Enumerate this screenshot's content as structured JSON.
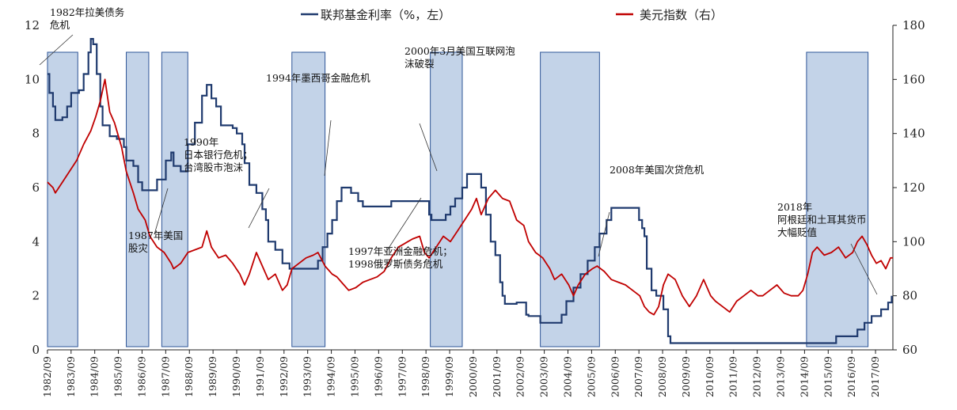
{
  "chart_data": {
    "type": "line",
    "title": "",
    "x_ticks": [
      "1982/09",
      "1983/09",
      "1984/09",
      "1985/09",
      "1986/09",
      "1987/09",
      "1988/09",
      "1989/09",
      "1990/09",
      "1991/09",
      "1992/09",
      "1993/09",
      "1994/09",
      "1995/09",
      "1996/09",
      "1997/09",
      "1998/09",
      "1999/09",
      "2000/09",
      "2001/09",
      "2002/09",
      "2003/09",
      "2004/09",
      "2005/09",
      "2006/09",
      "2007/09",
      "2008/09",
      "2009/09",
      "2010/09",
      "2011/09",
      "2012/09",
      "2013/09",
      "2014/09",
      "2015/09",
      "2016/09",
      "2017/09"
    ],
    "x_range": [
      1982.67,
      2018.4
    ],
    "y_left": {
      "range": [
        0,
        12
      ],
      "ticks": [
        "0",
        "2",
        "4",
        "6",
        "8",
        "10",
        "12"
      ]
    },
    "y_right": {
      "range": [
        60,
        180
      ],
      "ticks": [
        "60",
        "80",
        "100",
        "120",
        "140",
        "160",
        "180"
      ]
    },
    "legend": {
      "position": "top",
      "items": [
        {
          "name": "联邦基金利率（%，左）",
          "color": "#1f3a6e"
        },
        {
          "name": "美元指数（右）",
          "color": "#c00000"
        }
      ]
    },
    "series": [
      {
        "name": "联邦基金利率（%，左）",
        "axis": "left",
        "color": "#1f3a6e",
        "points": [
          [
            1982.67,
            10.2
          ],
          [
            1982.75,
            9.5
          ],
          [
            1982.9,
            9.0
          ],
          [
            1983.0,
            8.5
          ],
          [
            1983.3,
            8.6
          ],
          [
            1983.5,
            9.0
          ],
          [
            1983.67,
            9.5
          ],
          [
            1984.0,
            9.6
          ],
          [
            1984.2,
            10.2
          ],
          [
            1984.4,
            11.0
          ],
          [
            1984.5,
            11.5
          ],
          [
            1984.6,
            11.3
          ],
          [
            1984.75,
            10.2
          ],
          [
            1984.9,
            9.0
          ],
          [
            1985.0,
            8.3
          ],
          [
            1985.3,
            7.9
          ],
          [
            1985.6,
            7.8
          ],
          [
            1985.9,
            7.5
          ],
          [
            1986.0,
            7.0
          ],
          [
            1986.3,
            6.8
          ],
          [
            1986.5,
            6.2
          ],
          [
            1986.67,
            5.9
          ],
          [
            1987.0,
            5.9
          ],
          [
            1987.3,
            6.3
          ],
          [
            1987.67,
            7.0
          ],
          [
            1987.9,
            7.3
          ],
          [
            1988.0,
            6.8
          ],
          [
            1988.3,
            6.6
          ],
          [
            1988.6,
            7.6
          ],
          [
            1988.9,
            8.4
          ],
          [
            1989.2,
            9.4
          ],
          [
            1989.4,
            9.8
          ],
          [
            1989.6,
            9.3
          ],
          [
            1989.8,
            9.0
          ],
          [
            1990.0,
            8.3
          ],
          [
            1990.5,
            8.2
          ],
          [
            1990.67,
            8.0
          ],
          [
            1990.9,
            7.6
          ],
          [
            1991.0,
            6.9
          ],
          [
            1991.2,
            6.1
          ],
          [
            1991.5,
            5.8
          ],
          [
            1991.75,
            5.2
          ],
          [
            1991.9,
            4.8
          ],
          [
            1992.0,
            4.0
          ],
          [
            1992.3,
            3.7
          ],
          [
            1992.6,
            3.2
          ],
          [
            1992.9,
            3.0
          ],
          [
            1993.5,
            3.0
          ],
          [
            1993.8,
            3.0
          ],
          [
            1994.1,
            3.3
          ],
          [
            1994.3,
            3.8
          ],
          [
            1994.5,
            4.3
          ],
          [
            1994.7,
            4.8
          ],
          [
            1994.9,
            5.5
          ],
          [
            1995.1,
            6.0
          ],
          [
            1995.5,
            5.8
          ],
          [
            1995.8,
            5.5
          ],
          [
            1996.0,
            5.3
          ],
          [
            1996.5,
            5.3
          ],
          [
            1996.75,
            5.3
          ],
          [
            1997.2,
            5.5
          ],
          [
            1997.67,
            5.5
          ],
          [
            1998.0,
            5.5
          ],
          [
            1998.5,
            5.5
          ],
          [
            1998.8,
            5.0
          ],
          [
            1998.9,
            4.8
          ],
          [
            1999.3,
            4.8
          ],
          [
            1999.5,
            5.0
          ],
          [
            1999.7,
            5.3
          ],
          [
            1999.9,
            5.6
          ],
          [
            2000.2,
            6.0
          ],
          [
            2000.4,
            6.5
          ],
          [
            2000.67,
            6.5
          ],
          [
            2000.9,
            6.5
          ],
          [
            2001.0,
            6.0
          ],
          [
            2001.2,
            5.0
          ],
          [
            2001.4,
            4.0
          ],
          [
            2001.6,
            3.5
          ],
          [
            2001.8,
            2.5
          ],
          [
            2001.9,
            2.0
          ],
          [
            2002.0,
            1.7
          ],
          [
            2002.5,
            1.75
          ],
          [
            2002.9,
            1.3
          ],
          [
            2003.0,
            1.25
          ],
          [
            2003.5,
            1.0
          ],
          [
            2003.9,
            1.0
          ],
          [
            2004.0,
            1.0
          ],
          [
            2004.4,
            1.3
          ],
          [
            2004.6,
            1.8
          ],
          [
            2004.9,
            2.3
          ],
          [
            2005.2,
            2.8
          ],
          [
            2005.5,
            3.3
          ],
          [
            2005.8,
            3.8
          ],
          [
            2006.0,
            4.3
          ],
          [
            2006.3,
            4.8
          ],
          [
            2006.5,
            5.25
          ],
          [
            2007.0,
            5.25
          ],
          [
            2007.5,
            5.25
          ],
          [
            2007.67,
            4.8
          ],
          [
            2007.8,
            4.5
          ],
          [
            2007.9,
            4.2
          ],
          [
            2008.0,
            3.0
          ],
          [
            2008.2,
            2.2
          ],
          [
            2008.4,
            2.0
          ],
          [
            2008.7,
            1.5
          ],
          [
            2008.9,
            0.5
          ],
          [
            2009.0,
            0.25
          ],
          [
            2012.0,
            0.25
          ],
          [
            2015.0,
            0.25
          ],
          [
            2015.9,
            0.25
          ],
          [
            2016.0,
            0.5
          ],
          [
            2016.5,
            0.5
          ],
          [
            2016.9,
            0.75
          ],
          [
            2017.2,
            1.0
          ],
          [
            2017.5,
            1.25
          ],
          [
            2017.9,
            1.5
          ],
          [
            2018.2,
            1.75
          ],
          [
            2018.35,
            2.0
          ]
        ]
      },
      {
        "name": "美元指数（右）",
        "axis": "right",
        "color": "#c00000",
        "points": [
          [
            1982.67,
            122
          ],
          [
            1982.9,
            120
          ],
          [
            1983.0,
            118
          ],
          [
            1983.3,
            122
          ],
          [
            1983.6,
            126
          ],
          [
            1983.9,
            130
          ],
          [
            1984.2,
            136
          ],
          [
            1984.5,
            141
          ],
          [
            1984.7,
            146
          ],
          [
            1984.9,
            152
          ],
          [
            1985.1,
            160
          ],
          [
            1985.3,
            148
          ],
          [
            1985.5,
            144
          ],
          [
            1985.8,
            135
          ],
          [
            1986.0,
            126
          ],
          [
            1986.3,
            118
          ],
          [
            1986.5,
            112
          ],
          [
            1986.8,
            108
          ],
          [
            1987.0,
            102
          ],
          [
            1987.3,
            98
          ],
          [
            1987.6,
            96
          ],
          [
            1987.9,
            92
          ],
          [
            1988.0,
            90
          ],
          [
            1988.3,
            92
          ],
          [
            1988.6,
            96
          ],
          [
            1988.9,
            97
          ],
          [
            1989.2,
            98
          ],
          [
            1989.4,
            104
          ],
          [
            1989.6,
            98
          ],
          [
            1989.9,
            94
          ],
          [
            1990.2,
            95
          ],
          [
            1990.5,
            92
          ],
          [
            1990.8,
            88
          ],
          [
            1991.0,
            84
          ],
          [
            1991.2,
            88
          ],
          [
            1991.5,
            96
          ],
          [
            1991.8,
            90
          ],
          [
            1992.0,
            86
          ],
          [
            1992.3,
            88
          ],
          [
            1992.6,
            82
          ],
          [
            1992.8,
            84
          ],
          [
            1993.0,
            90
          ],
          [
            1993.3,
            92
          ],
          [
            1993.6,
            94
          ],
          [
            1993.9,
            95
          ],
          [
            1994.1,
            96
          ],
          [
            1994.4,
            91
          ],
          [
            1994.7,
            88
          ],
          [
            1994.9,
            87
          ],
          [
            1995.1,
            85
          ],
          [
            1995.4,
            82
          ],
          [
            1995.7,
            83
          ],
          [
            1996.0,
            85
          ],
          [
            1996.3,
            86
          ],
          [
            1996.6,
            87
          ],
          [
            1996.9,
            89
          ],
          [
            1997.2,
            94
          ],
          [
            1997.5,
            98
          ],
          [
            1997.7,
            99
          ],
          [
            1997.9,
            100
          ],
          [
            1998.1,
            101
          ],
          [
            1998.4,
            102
          ],
          [
            1998.6,
            96
          ],
          [
            1998.8,
            94
          ],
          [
            1999.1,
            98
          ],
          [
            1999.4,
            102
          ],
          [
            1999.7,
            100
          ],
          [
            2000.0,
            104
          ],
          [
            2000.3,
            108
          ],
          [
            2000.6,
            112
          ],
          [
            2000.8,
            116
          ],
          [
            2001.0,
            110
          ],
          [
            2001.3,
            116
          ],
          [
            2001.6,
            119
          ],
          [
            2001.9,
            116
          ],
          [
            2002.2,
            115
          ],
          [
            2002.5,
            108
          ],
          [
            2002.8,
            106
          ],
          [
            2003.0,
            100
          ],
          [
            2003.3,
            96
          ],
          [
            2003.6,
            94
          ],
          [
            2003.9,
            90
          ],
          [
            2004.1,
            86
          ],
          [
            2004.4,
            88
          ],
          [
            2004.7,
            84
          ],
          [
            2004.9,
            80
          ],
          [
            2005.1,
            84
          ],
          [
            2005.4,
            88
          ],
          [
            2005.7,
            90
          ],
          [
            2005.9,
            91
          ],
          [
            2006.2,
            89
          ],
          [
            2006.5,
            86
          ],
          [
            2006.8,
            85
          ],
          [
            2007.1,
            84
          ],
          [
            2007.4,
            82
          ],
          [
            2007.7,
            80
          ],
          [
            2007.9,
            76
          ],
          [
            2008.1,
            74
          ],
          [
            2008.3,
            73
          ],
          [
            2008.5,
            76
          ],
          [
            2008.7,
            84
          ],
          [
            2008.9,
            88
          ],
          [
            2009.2,
            86
          ],
          [
            2009.5,
            80
          ],
          [
            2009.8,
            76
          ],
          [
            2010.1,
            80
          ],
          [
            2010.4,
            86
          ],
          [
            2010.7,
            80
          ],
          [
            2010.9,
            78
          ],
          [
            2011.2,
            76
          ],
          [
            2011.5,
            74
          ],
          [
            2011.8,
            78
          ],
          [
            2012.1,
            80
          ],
          [
            2012.4,
            82
          ],
          [
            2012.7,
            80
          ],
          [
            2012.9,
            80
          ],
          [
            2013.2,
            82
          ],
          [
            2013.5,
            84
          ],
          [
            2013.8,
            81
          ],
          [
            2014.1,
            80
          ],
          [
            2014.4,
            80
          ],
          [
            2014.6,
            82
          ],
          [
            2014.8,
            88
          ],
          [
            2015.0,
            96
          ],
          [
            2015.2,
            98
          ],
          [
            2015.5,
            95
          ],
          [
            2015.8,
            96
          ],
          [
            2016.1,
            98
          ],
          [
            2016.4,
            94
          ],
          [
            2016.7,
            96
          ],
          [
            2016.9,
            100
          ],
          [
            2017.1,
            102
          ],
          [
            2017.3,
            99
          ],
          [
            2017.5,
            95
          ],
          [
            2017.7,
            92
          ],
          [
            2017.9,
            93
          ],
          [
            2018.1,
            90
          ],
          [
            2018.3,
            94
          ],
          [
            2018.4,
            94
          ]
        ]
      }
    ],
    "shaded_periods": [
      {
        "start": 1982.67,
        "end": 1983.95
      },
      {
        "start": 1986.0,
        "end": 1986.95
      },
      {
        "start": 1987.5,
        "end": 1988.6
      },
      {
        "start": 1993.0,
        "end": 1994.4
      },
      {
        "start": 1998.85,
        "end": 2000.2
      },
      {
        "start": 2003.5,
        "end": 2006.0
      },
      {
        "start": 2014.75,
        "end": 2017.35
      }
    ],
    "annotations": [
      {
        "id": "1982",
        "lines": [
          "1982年拉美债务",
          "危机"
        ]
      },
      {
        "id": "1987",
        "lines": [
          "1987年美国",
          "股灾"
        ]
      },
      {
        "id": "1990",
        "lines": [
          "1990年",
          "日本银行危机；",
          "台湾股市泡沫"
        ]
      },
      {
        "id": "1994",
        "lines": [
          "1994年墨西哥金融危机"
        ]
      },
      {
        "id": "1997",
        "lines": [
          "1997年亚洲金融危机；",
          "1998俄罗斯债务危机"
        ]
      },
      {
        "id": "2000",
        "lines": [
          "2000年3月美国互联网泡",
          "沫破裂"
        ]
      },
      {
        "id": "2008",
        "lines": [
          "2008年美国次贷危机"
        ]
      },
      {
        "id": "2018",
        "lines": [
          "2018年",
          "阿根廷和土耳其货币",
          "大幅贬值"
        ]
      }
    ]
  }
}
